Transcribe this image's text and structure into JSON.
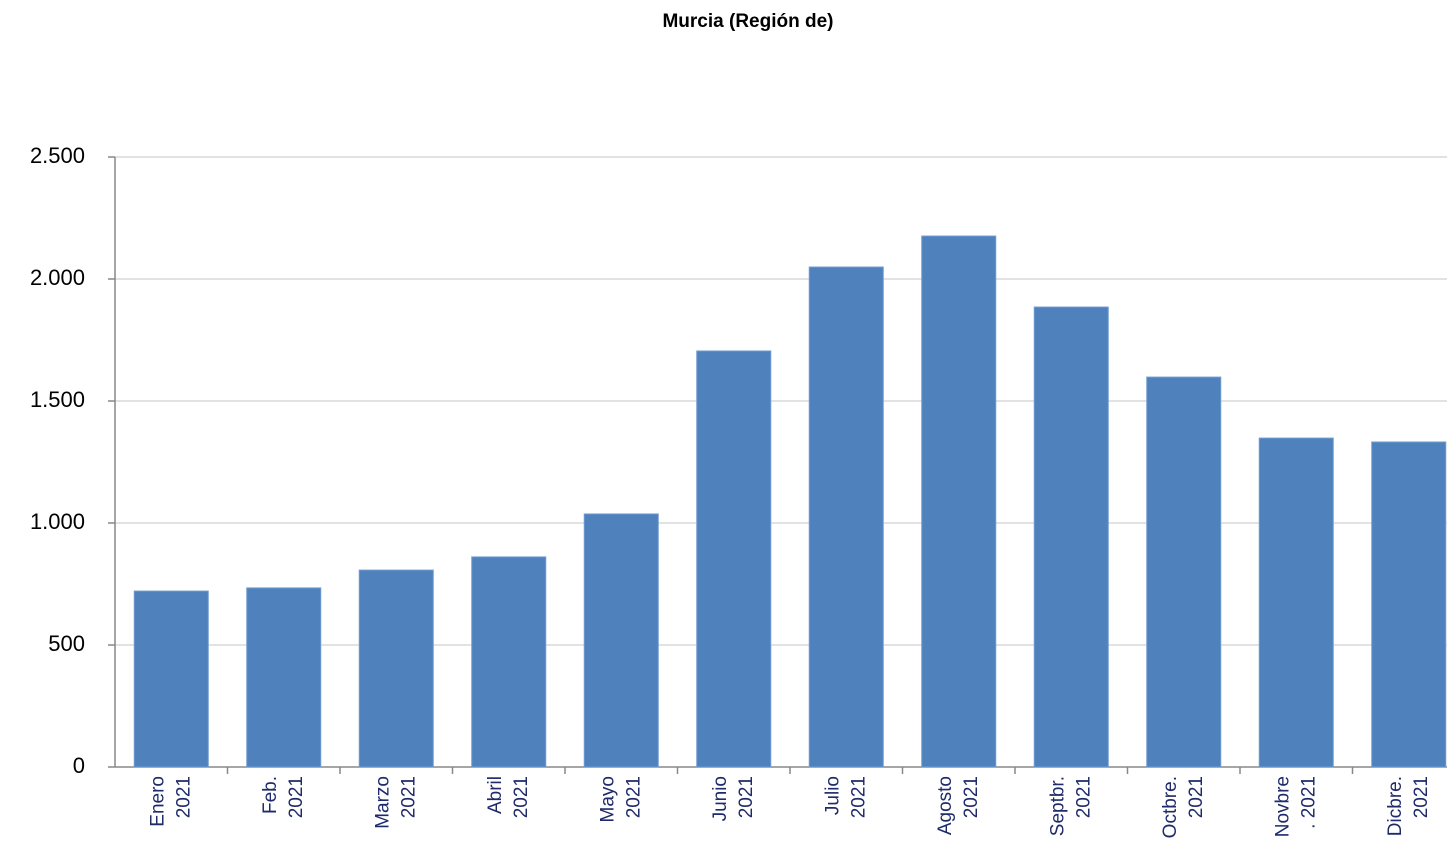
{
  "chart_data": {
    "type": "bar",
    "title": "Murcia (Región de)",
    "categories": [
      [
        "Enero",
        "2021"
      ],
      [
        "Feb.",
        "2021"
      ],
      [
        "Marzo",
        "2021"
      ],
      [
        "Abril",
        "2021"
      ],
      [
        "Mayo",
        "2021"
      ],
      [
        "Junio",
        "2021"
      ],
      [
        "Julio",
        "2021"
      ],
      [
        "Agosto",
        "2021"
      ],
      [
        "Septbr.",
        "2021"
      ],
      [
        "Octbre.",
        "2021"
      ],
      [
        "Novbre",
        ". 2021"
      ],
      [
        "Dicbre.",
        "2021"
      ]
    ],
    "values": [
      721,
      734,
      807,
      861,
      1037,
      1705,
      2049,
      2176,
      1885,
      1598,
      1348,
      1332
    ],
    "color": "#4f81bd",
    "ylim": [
      0,
      2500
    ],
    "yticks": [
      0,
      500,
      {
        "value": 1000,
        "label": "1.000"
      },
      {
        "value": 1500,
        "label": "1.500"
      },
      {
        "value": 2000,
        "label": "2.000"
      },
      {
        "value": 2500,
        "label": "2.500"
      }
    ],
    "grid": true
  }
}
